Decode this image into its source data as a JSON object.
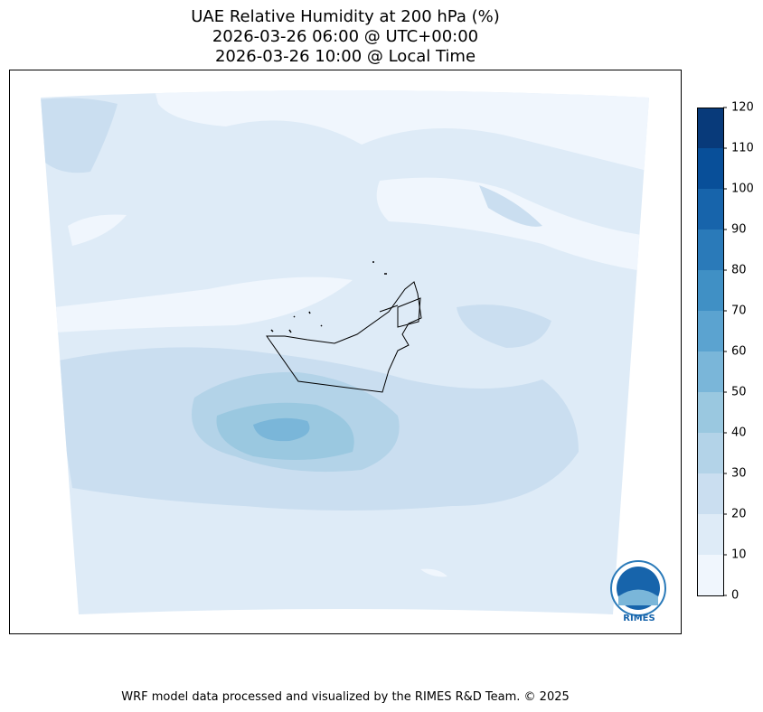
{
  "map": {
    "title": [
      "UAE Relative Humidity at 200 hPa (%)",
      "2026-03-26 06:00 @ UTC+00:00",
      "2026-03-26 10:00 @ Local Time"
    ],
    "colorbar": {
      "ticks": [
        0,
        10,
        20,
        30,
        40,
        50,
        60,
        70,
        80,
        90,
        100,
        110,
        120
      ],
      "colors": [
        "#f0f6fd",
        "#deebf7",
        "#cadef0",
        "#b3d3e8",
        "#9ac8e0",
        "#7ab6d9",
        "#5ba3d0",
        "#4090c5",
        "#2a7ab9",
        "#1764ab",
        "#084f99",
        "#083a7a"
      ]
    },
    "logo": "RIMES",
    "footer": "WRF model data processed and visualized by the RIMES R&D Team. © 2025"
  }
}
